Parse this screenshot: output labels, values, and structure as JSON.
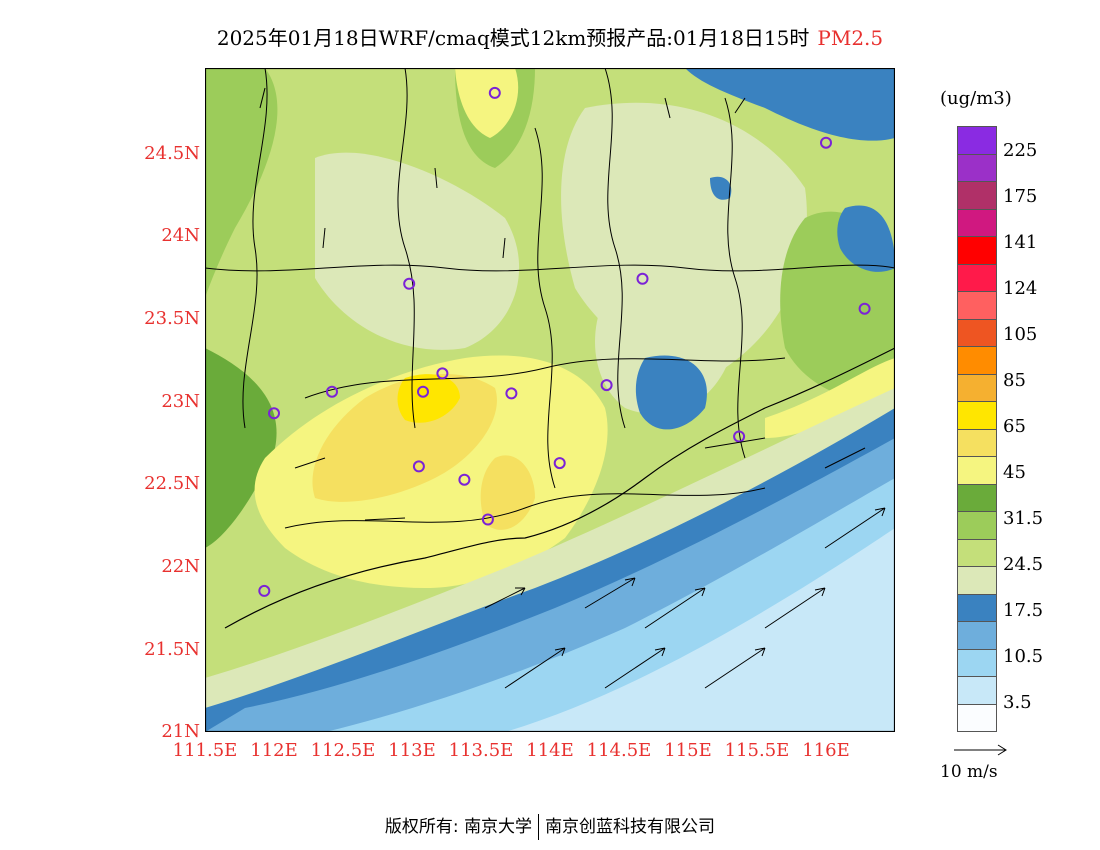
{
  "header": {
    "title": "2025年01月18日WRF/cmaq模式12km预报产品:01月18日15时",
    "variable": "PM2.5"
  },
  "axes": {
    "lat_labels": [
      "24.5N",
      "24N",
      "23.5N",
      "23N",
      "22.5N",
      "22N",
      "21.5N",
      "21N"
    ],
    "lat_values": [
      24.5,
      24.0,
      23.5,
      23.0,
      22.5,
      22.0,
      21.5,
      21.0
    ],
    "lon_labels": [
      "111.5E",
      "112E",
      "112.5E",
      "113E",
      "113.5E",
      "114E",
      "114.5E",
      "115E",
      "115.5E",
      "116E"
    ],
    "lon_values": [
      111.5,
      112.0,
      112.5,
      113.0,
      113.5,
      114.0,
      114.5,
      115.0,
      115.5,
      116.0
    ],
    "lat_range": [
      21.0,
      25.0
    ],
    "lon_range": [
      111.5,
      116.5
    ]
  },
  "legend": {
    "unit": "(ug/m3)",
    "labels": [
      "225",
      "175",
      "141",
      "124",
      "105",
      "85",
      "65",
      "45",
      "31.5",
      "24.5",
      "17.5",
      "10.5",
      "3.5"
    ],
    "colors_top_to_bottom": [
      "#8a2be2",
      "#9b30c8",
      "#b03068",
      "#d01880",
      "#ff0000",
      "#ff1a4a",
      "#ff6060",
      "#ee5522",
      "#ff8c00",
      "#f5b030",
      "#ffe600",
      "#f5e060",
      "#f5f580",
      "#6aab3a",
      "#9ccc5a",
      "#c4df7a",
      "#dce8b8",
      "#3a82c0",
      "#6eaedc",
      "#9cd6f2",
      "#c8e8f8",
      "#fbfdff"
    ]
  },
  "wind_reference": {
    "label": "10 m/s"
  },
  "stations": [
    {
      "lon": 113.6,
      "lat": 24.85
    },
    {
      "lon": 116.0,
      "lat": 24.55
    },
    {
      "lon": 112.98,
      "lat": 23.7
    },
    {
      "lon": 114.67,
      "lat": 23.73
    },
    {
      "lon": 116.28,
      "lat": 23.55
    },
    {
      "lon": 112.42,
      "lat": 23.05
    },
    {
      "lon": 113.08,
      "lat": 23.05
    },
    {
      "lon": 113.22,
      "lat": 23.16
    },
    {
      "lon": 113.72,
      "lat": 23.04
    },
    {
      "lon": 114.41,
      "lat": 23.09
    },
    {
      "lon": 112.0,
      "lat": 22.92
    },
    {
      "lon": 115.37,
      "lat": 22.78
    },
    {
      "lon": 113.05,
      "lat": 22.6
    },
    {
      "lon": 113.38,
      "lat": 22.52
    },
    {
      "lon": 114.07,
      "lat": 22.62
    },
    {
      "lon": 113.55,
      "lat": 22.28
    },
    {
      "lon": 111.93,
      "lat": 21.85
    }
  ],
  "footer": {
    "copyright_prefix": "版权所有:",
    "org1": "南京大学",
    "org2": "南京创蓝科技有限公司"
  }
}
